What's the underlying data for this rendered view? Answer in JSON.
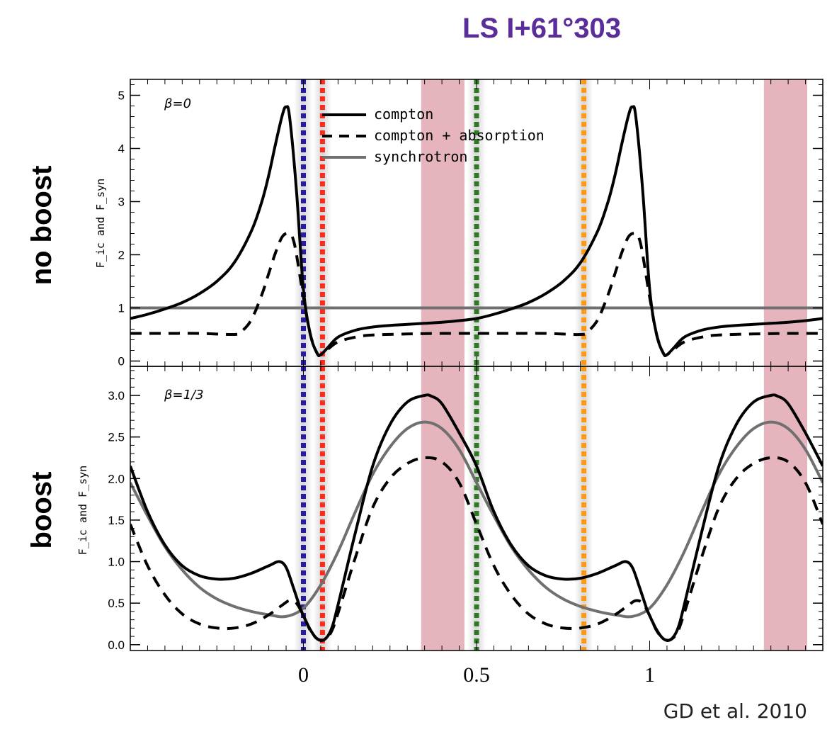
{
  "title": "LS I+61°303",
  "credit": "GD et al. 2010",
  "row_labels": {
    "top": "no boost",
    "bottom": "boost"
  },
  "y_axis_label_top": "F_ic and F_syn",
  "y_axis_label_bottom": "F_ic and F_syn",
  "legend": {
    "compton": "compton",
    "compton_absorption": "compton + absorption",
    "synchrotron": "synchrotron"
  },
  "colors": {
    "title": "#5b2d9a",
    "compton": "#000000",
    "synchrotron": "#707070",
    "shaded_band": "#d98c99",
    "line_blue": "#2a1aa0",
    "line_red": "#ff2a1a",
    "line_green": "#2e7a22",
    "line_orange": "#ff9a10"
  },
  "chart_data": [
    {
      "type": "line",
      "panel_label": "β=0",
      "xlim": [
        -0.5,
        1.5
      ],
      "ylim": [
        -0.1,
        5.3
      ],
      "yticks": [
        0,
        1,
        2,
        3,
        4,
        5
      ],
      "ytick_labels": [
        "0",
        "1",
        "2",
        "3",
        "4",
        "5"
      ],
      "vertical_lines": [
        {
          "x": 0.0,
          "color": "blue"
        },
        {
          "x": 0.055,
          "color": "red"
        },
        {
          "x": 0.5,
          "color": "green"
        },
        {
          "x": 0.81,
          "color": "orange"
        }
      ],
      "shaded_bands": [
        [
          0.34,
          0.465
        ],
        [
          1.33,
          1.455
        ]
      ],
      "series": [
        {
          "name": "compton",
          "style": "solid",
          "x": [
            -0.5,
            -0.45,
            -0.4,
            -0.35,
            -0.3,
            -0.25,
            -0.2,
            -0.15,
            -0.12,
            -0.1,
            -0.08,
            -0.06,
            -0.05,
            -0.04,
            -0.02,
            0.0,
            0.02,
            0.04,
            0.05,
            0.07,
            0.1,
            0.15,
            0.2,
            0.25,
            0.3,
            0.35,
            0.4,
            0.45,
            0.5,
            0.55,
            0.6,
            0.65,
            0.7,
            0.75,
            0.8,
            0.85,
            0.88,
            0.9,
            0.92,
            0.94,
            0.95,
            0.96,
            0.98,
            1.0,
            1.02,
            1.04,
            1.05,
            1.07,
            1.1,
            1.15,
            1.2,
            1.25,
            1.3,
            1.35,
            1.4,
            1.45,
            1.5
          ],
          "y": [
            0.8,
            0.88,
            0.98,
            1.1,
            1.27,
            1.5,
            1.85,
            2.45,
            3.0,
            3.5,
            4.1,
            4.65,
            4.78,
            4.6,
            3.2,
            1.35,
            0.5,
            0.14,
            0.12,
            0.25,
            0.45,
            0.58,
            0.64,
            0.67,
            0.69,
            0.71,
            0.73,
            0.76,
            0.8,
            0.88,
            0.98,
            1.1,
            1.27,
            1.5,
            1.85,
            2.45,
            3.0,
            3.5,
            4.1,
            4.65,
            4.78,
            4.6,
            3.2,
            1.35,
            0.5,
            0.14,
            0.12,
            0.25,
            0.45,
            0.58,
            0.64,
            0.67,
            0.69,
            0.71,
            0.73,
            0.76,
            0.8
          ]
        },
        {
          "name": "compton + absorption",
          "style": "dashed",
          "x": [
            -0.5,
            -0.4,
            -0.3,
            -0.2,
            -0.18,
            -0.15,
            -0.12,
            -0.1,
            -0.08,
            -0.06,
            -0.04,
            -0.03,
            -0.02,
            0.0,
            0.02,
            0.04,
            0.05,
            0.07,
            0.1,
            0.15,
            0.2,
            0.3,
            0.4,
            0.5,
            0.6,
            0.7,
            0.8,
            0.82,
            0.85,
            0.88,
            0.9,
            0.92,
            0.94,
            0.96,
            0.97,
            0.98,
            1.0,
            1.02,
            1.04,
            1.05,
            1.07,
            1.1,
            1.15,
            1.2,
            1.3,
            1.4,
            1.5
          ],
          "y": [
            0.52,
            0.52,
            0.52,
            0.5,
            0.55,
            0.78,
            1.25,
            1.65,
            2.05,
            2.35,
            2.4,
            2.3,
            2.0,
            1.2,
            0.5,
            0.14,
            0.12,
            0.22,
            0.36,
            0.45,
            0.49,
            0.51,
            0.52,
            0.52,
            0.52,
            0.52,
            0.5,
            0.55,
            0.78,
            1.25,
            1.65,
            2.05,
            2.35,
            2.4,
            2.3,
            2.0,
            1.2,
            0.5,
            0.14,
            0.12,
            0.22,
            0.36,
            0.45,
            0.49,
            0.51,
            0.52,
            0.52
          ]
        },
        {
          "name": "synchrotron",
          "style": "solid-gray",
          "x": [
            -0.5,
            1.5
          ],
          "y": [
            1.0,
            1.0
          ]
        }
      ]
    },
    {
      "type": "line",
      "panel_label": "β=1/3",
      "xlim": [
        -0.5,
        1.5
      ],
      "ylim": [
        -0.07,
        3.35
      ],
      "yticks": [
        0.0,
        0.5,
        1.0,
        1.5,
        2.0,
        2.5,
        3.0
      ],
      "ytick_labels": [
        "0.0",
        "0.5",
        "1.0",
        "1.5",
        "2.0",
        "2.5",
        "3.0"
      ],
      "xticks": [
        0,
        0.5,
        1
      ],
      "xtick_labels": [
        "0",
        "0.5",
        "1"
      ],
      "vertical_lines": [
        {
          "x": 0.0,
          "color": "blue"
        },
        {
          "x": 0.055,
          "color": "red"
        },
        {
          "x": 0.5,
          "color": "green"
        },
        {
          "x": 0.81,
          "color": "orange"
        }
      ],
      "shaded_bands": [
        [
          0.34,
          0.465
        ],
        [
          1.33,
          1.455
        ]
      ],
      "series": [
        {
          "name": "compton",
          "style": "solid",
          "x": [
            -0.5,
            -0.45,
            -0.4,
            -0.35,
            -0.3,
            -0.25,
            -0.2,
            -0.15,
            -0.1,
            -0.07,
            -0.05,
            -0.03,
            -0.01,
            0.0,
            0.02,
            0.04,
            0.06,
            0.08,
            0.1,
            0.15,
            0.2,
            0.25,
            0.3,
            0.35,
            0.37,
            0.4,
            0.45,
            0.5,
            0.55,
            0.6,
            0.65,
            0.7,
            0.75,
            0.8,
            0.85,
            0.9,
            0.93,
            0.95,
            0.97,
            0.99,
            1.0,
            1.02,
            1.04,
            1.06,
            1.08,
            1.1,
            1.15,
            1.2,
            1.25,
            1.3,
            1.35,
            1.37,
            1.4,
            1.45,
            1.5
          ],
          "y": [
            2.15,
            1.6,
            1.2,
            0.95,
            0.83,
            0.79,
            0.8,
            0.86,
            0.95,
            1.0,
            0.93,
            0.7,
            0.45,
            0.35,
            0.18,
            0.07,
            0.06,
            0.18,
            0.48,
            1.35,
            2.15,
            2.65,
            2.92,
            3.0,
            2.99,
            2.9,
            2.55,
            2.15,
            1.6,
            1.2,
            0.95,
            0.83,
            0.79,
            0.8,
            0.86,
            0.95,
            1.0,
            0.93,
            0.7,
            0.45,
            0.35,
            0.18,
            0.07,
            0.06,
            0.18,
            0.48,
            1.35,
            2.15,
            2.65,
            2.92,
            3.0,
            2.99,
            2.9,
            2.55,
            2.15
          ]
        },
        {
          "name": "compton + absorption",
          "style": "dashed",
          "x": [
            -0.5,
            -0.45,
            -0.4,
            -0.35,
            -0.3,
            -0.25,
            -0.2,
            -0.15,
            -0.1,
            -0.06,
            -0.04,
            -0.02,
            0.0,
            0.02,
            0.04,
            0.06,
            0.08,
            0.1,
            0.15,
            0.2,
            0.25,
            0.3,
            0.35,
            0.4,
            0.45,
            0.5,
            0.55,
            0.6,
            0.65,
            0.7,
            0.75,
            0.8,
            0.85,
            0.9,
            0.94,
            0.96,
            0.98,
            1.0,
            1.02,
            1.04,
            1.06,
            1.08,
            1.1,
            1.15,
            1.2,
            1.25,
            1.3,
            1.35,
            1.4,
            1.45,
            1.5
          ],
          "y": [
            1.45,
            0.95,
            0.6,
            0.37,
            0.25,
            0.2,
            0.2,
            0.25,
            0.36,
            0.48,
            0.53,
            0.5,
            0.35,
            0.17,
            0.07,
            0.06,
            0.15,
            0.38,
            1.05,
            1.65,
            2.0,
            2.18,
            2.25,
            2.2,
            1.95,
            1.45,
            0.95,
            0.6,
            0.37,
            0.25,
            0.2,
            0.2,
            0.25,
            0.36,
            0.48,
            0.53,
            0.5,
            0.35,
            0.17,
            0.07,
            0.06,
            0.15,
            0.38,
            1.05,
            1.65,
            2.0,
            2.18,
            2.25,
            2.2,
            1.95,
            1.45
          ]
        },
        {
          "name": "synchrotron",
          "style": "solid-gray",
          "x": [
            -0.5,
            -0.45,
            -0.4,
            -0.35,
            -0.3,
            -0.25,
            -0.2,
            -0.15,
            -0.1,
            -0.05,
            0.0,
            0.05,
            0.1,
            0.15,
            0.2,
            0.25,
            0.3,
            0.35,
            0.4,
            0.45,
            0.5,
            0.55,
            0.6,
            0.65,
            0.7,
            0.75,
            0.8,
            0.85,
            0.9,
            0.95,
            1.0,
            1.05,
            1.1,
            1.15,
            1.2,
            1.25,
            1.3,
            1.35,
            1.4,
            1.45,
            1.5
          ],
          "y": [
            1.95,
            1.55,
            1.18,
            0.9,
            0.69,
            0.55,
            0.46,
            0.4,
            0.36,
            0.34,
            0.44,
            0.72,
            1.12,
            1.6,
            2.05,
            2.38,
            2.6,
            2.68,
            2.6,
            2.35,
            1.95,
            1.55,
            1.18,
            0.9,
            0.69,
            0.55,
            0.46,
            0.4,
            0.36,
            0.34,
            0.44,
            0.72,
            1.12,
            1.6,
            2.05,
            2.38,
            2.6,
            2.68,
            2.6,
            2.35,
            1.95
          ]
        }
      ]
    }
  ]
}
